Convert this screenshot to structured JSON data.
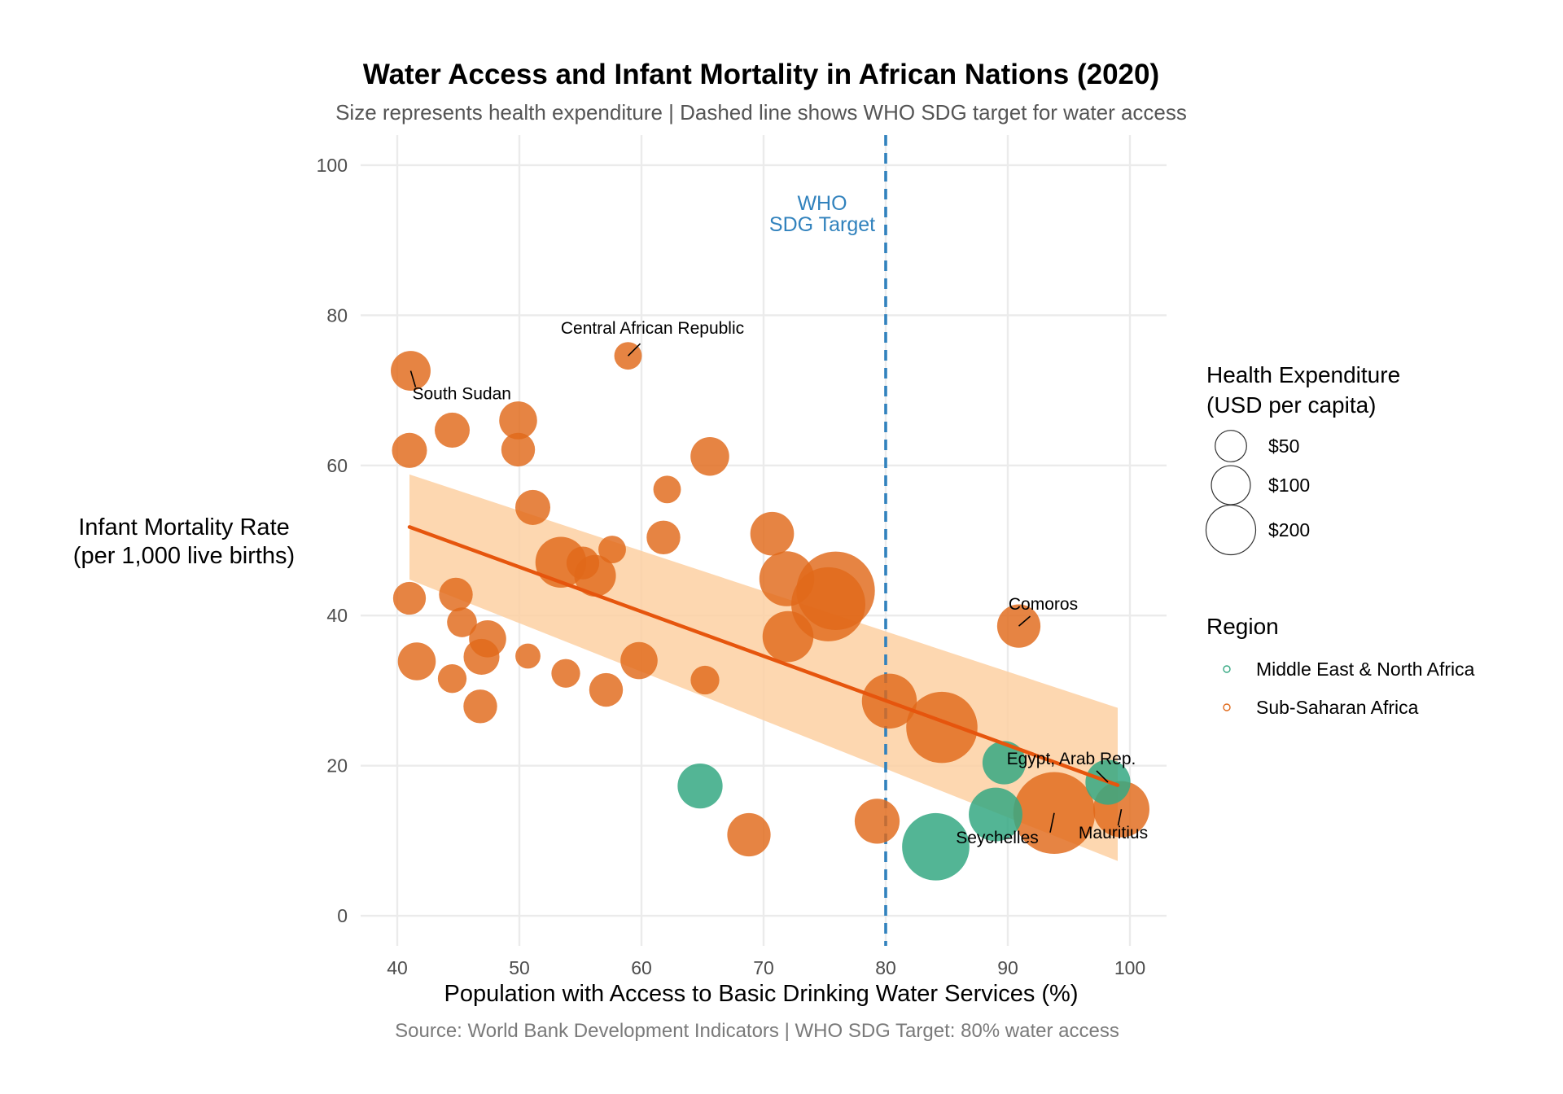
{
  "chart_data": {
    "type": "scatter",
    "title": "Water Access and Infant Mortality in African Nations (2020)",
    "subtitle": "Size represents health expenditure | Dashed line shows WHO SDG target for water access",
    "caption": "Source: World Bank Development Indicators | WHO SDG Target: 80% water access",
    "xlabel": "Population with Access to Basic Drinking Water Services (%)",
    "ylabel": [
      "Infant Mortality Rate",
      "(per 1,000 live births)"
    ],
    "xlim": [
      37,
      103
    ],
    "ylim": [
      -4,
      104
    ],
    "xticks": [
      40,
      50,
      60,
      70,
      80,
      90,
      100
    ],
    "yticks": [
      0,
      20,
      40,
      60,
      80,
      100
    ],
    "grid": true,
    "target": {
      "x": 80,
      "label": [
        "WHO",
        "SDG Target"
      ],
      "color": "#3182bd"
    },
    "colors": {
      "Middle East & North Africa": "#35a882",
      "Sub-Saharan Africa": "#e0691a",
      "trend_line": "#e6550d",
      "confidence_band": "#fdd0a2"
    },
    "trend": {
      "x": [
        41,
        99
      ],
      "y": [
        51.8,
        17.4
      ]
    },
    "confidence_band": {
      "x": [
        41,
        99
      ],
      "upper": [
        58.8,
        27.7
      ],
      "lower": [
        44.8,
        7.3
      ]
    },
    "legend": {
      "size_title": [
        "Health Expenditure",
        "(USD per capita)"
      ],
      "size_entries": [
        {
          "label": "$50",
          "value": 50
        },
        {
          "label": "$100",
          "value": 100
        },
        {
          "label": "$200",
          "value": 200
        }
      ],
      "region_title": "Region",
      "regions": [
        "Middle East & North Africa",
        "Sub-Saharan Africa"
      ],
      "placement": "right"
    },
    "points": [
      {
        "x": 41.1,
        "y": 72.6,
        "exp": 45,
        "region": "Sub-Saharan Africa",
        "label": "South Sudan"
      },
      {
        "x": 58.9,
        "y": 74.6,
        "exp": 18,
        "region": "Sub-Saharan Africa",
        "label": "Central African Republic"
      },
      {
        "x": 49.9,
        "y": 66.0,
        "exp": 40,
        "region": "Sub-Saharan Africa"
      },
      {
        "x": 44.5,
        "y": 64.7,
        "exp": 33,
        "region": "Sub-Saharan Africa"
      },
      {
        "x": 41.0,
        "y": 62.0,
        "exp": 33,
        "region": "Sub-Saharan Africa"
      },
      {
        "x": 49.9,
        "y": 62.1,
        "exp": 30,
        "region": "Sub-Saharan Africa"
      },
      {
        "x": 65.6,
        "y": 61.2,
        "exp": 42,
        "region": "Sub-Saharan Africa"
      },
      {
        "x": 62.1,
        "y": 56.8,
        "exp": 18,
        "region": "Sub-Saharan Africa"
      },
      {
        "x": 51.1,
        "y": 54.4,
        "exp": 33,
        "region": "Sub-Saharan Africa"
      },
      {
        "x": 70.7,
        "y": 50.9,
        "exp": 56,
        "region": "Sub-Saharan Africa"
      },
      {
        "x": 61.8,
        "y": 50.4,
        "exp": 30,
        "region": "Sub-Saharan Africa"
      },
      {
        "x": 57.6,
        "y": 48.8,
        "exp": 18,
        "region": "Sub-Saharan Africa"
      },
      {
        "x": 53.4,
        "y": 47.1,
        "exp": 80,
        "region": "Sub-Saharan Africa"
      },
      {
        "x": 55.2,
        "y": 47.0,
        "exp": 28,
        "region": "Sub-Saharan Africa"
      },
      {
        "x": 56.2,
        "y": 45.3,
        "exp": 50,
        "region": "Sub-Saharan Africa"
      },
      {
        "x": 71.9,
        "y": 44.9,
        "exp": 95,
        "region": "Sub-Saharan Africa"
      },
      {
        "x": 75.9,
        "y": 43.3,
        "exp": 210,
        "region": "Sub-Saharan Africa"
      },
      {
        "x": 75.3,
        "y": 41.5,
        "exp": 185,
        "region": "Sub-Saharan Africa"
      },
      {
        "x": 44.8,
        "y": 42.8,
        "exp": 30,
        "region": "Sub-Saharan Africa"
      },
      {
        "x": 41.0,
        "y": 42.3,
        "exp": 28,
        "region": "Sub-Saharan Africa"
      },
      {
        "x": 45.3,
        "y": 39.1,
        "exp": 22,
        "region": "Sub-Saharan Africa"
      },
      {
        "x": 90.9,
        "y": 38.6,
        "exp": 55,
        "region": "Sub-Saharan Africa",
        "label": "Comoros"
      },
      {
        "x": 72.0,
        "y": 37.2,
        "exp": 80,
        "region": "Sub-Saharan Africa"
      },
      {
        "x": 47.4,
        "y": 36.9,
        "exp": 38,
        "region": "Sub-Saharan Africa"
      },
      {
        "x": 46.9,
        "y": 34.5,
        "exp": 35,
        "region": "Sub-Saharan Africa"
      },
      {
        "x": 50.7,
        "y": 34.6,
        "exp": 14,
        "region": "Sub-Saharan Africa"
      },
      {
        "x": 41.6,
        "y": 33.9,
        "exp": 40,
        "region": "Sub-Saharan Africa"
      },
      {
        "x": 59.8,
        "y": 34.0,
        "exp": 38,
        "region": "Sub-Saharan Africa"
      },
      {
        "x": 53.8,
        "y": 32.3,
        "exp": 20,
        "region": "Sub-Saharan Africa"
      },
      {
        "x": 44.5,
        "y": 31.6,
        "exp": 20,
        "region": "Sub-Saharan Africa"
      },
      {
        "x": 65.2,
        "y": 31.4,
        "exp": 20,
        "region": "Sub-Saharan Africa"
      },
      {
        "x": 57.1,
        "y": 30.1,
        "exp": 30,
        "region": "Sub-Saharan Africa"
      },
      {
        "x": 46.8,
        "y": 27.9,
        "exp": 30,
        "region": "Sub-Saharan Africa"
      },
      {
        "x": 80.3,
        "y": 28.6,
        "exp": 95,
        "region": "Sub-Saharan Africa"
      },
      {
        "x": 84.6,
        "y": 25.1,
        "exp": 170,
        "region": "Sub-Saharan Africa"
      },
      {
        "x": 89.7,
        "y": 20.4,
        "exp": 55,
        "region": "Middle East & North Africa"
      },
      {
        "x": 98.2,
        "y": 17.8,
        "exp": 60,
        "region": "Middle East & North Africa",
        "label": "Egypt, Arab Rep."
      },
      {
        "x": 64.8,
        "y": 17.3,
        "exp": 60,
        "region": "Middle East & North Africa"
      },
      {
        "x": 99.3,
        "y": 14.2,
        "exp": 100,
        "region": "Sub-Saharan Africa",
        "label": "Mauritius"
      },
      {
        "x": 93.8,
        "y": 13.7,
        "exp": 230,
        "region": "Sub-Saharan Africa",
        "label": "Seychelles"
      },
      {
        "x": 89.0,
        "y": 13.5,
        "exp": 90,
        "region": "Middle East & North Africa"
      },
      {
        "x": 79.3,
        "y": 12.6,
        "exp": 60,
        "region": "Sub-Saharan Africa"
      },
      {
        "x": 68.8,
        "y": 10.8,
        "exp": 55,
        "region": "Sub-Saharan Africa"
      },
      {
        "x": 84.1,
        "y": 9.2,
        "exp": 150,
        "region": "Middle East & North Africa"
      }
    ]
  }
}
